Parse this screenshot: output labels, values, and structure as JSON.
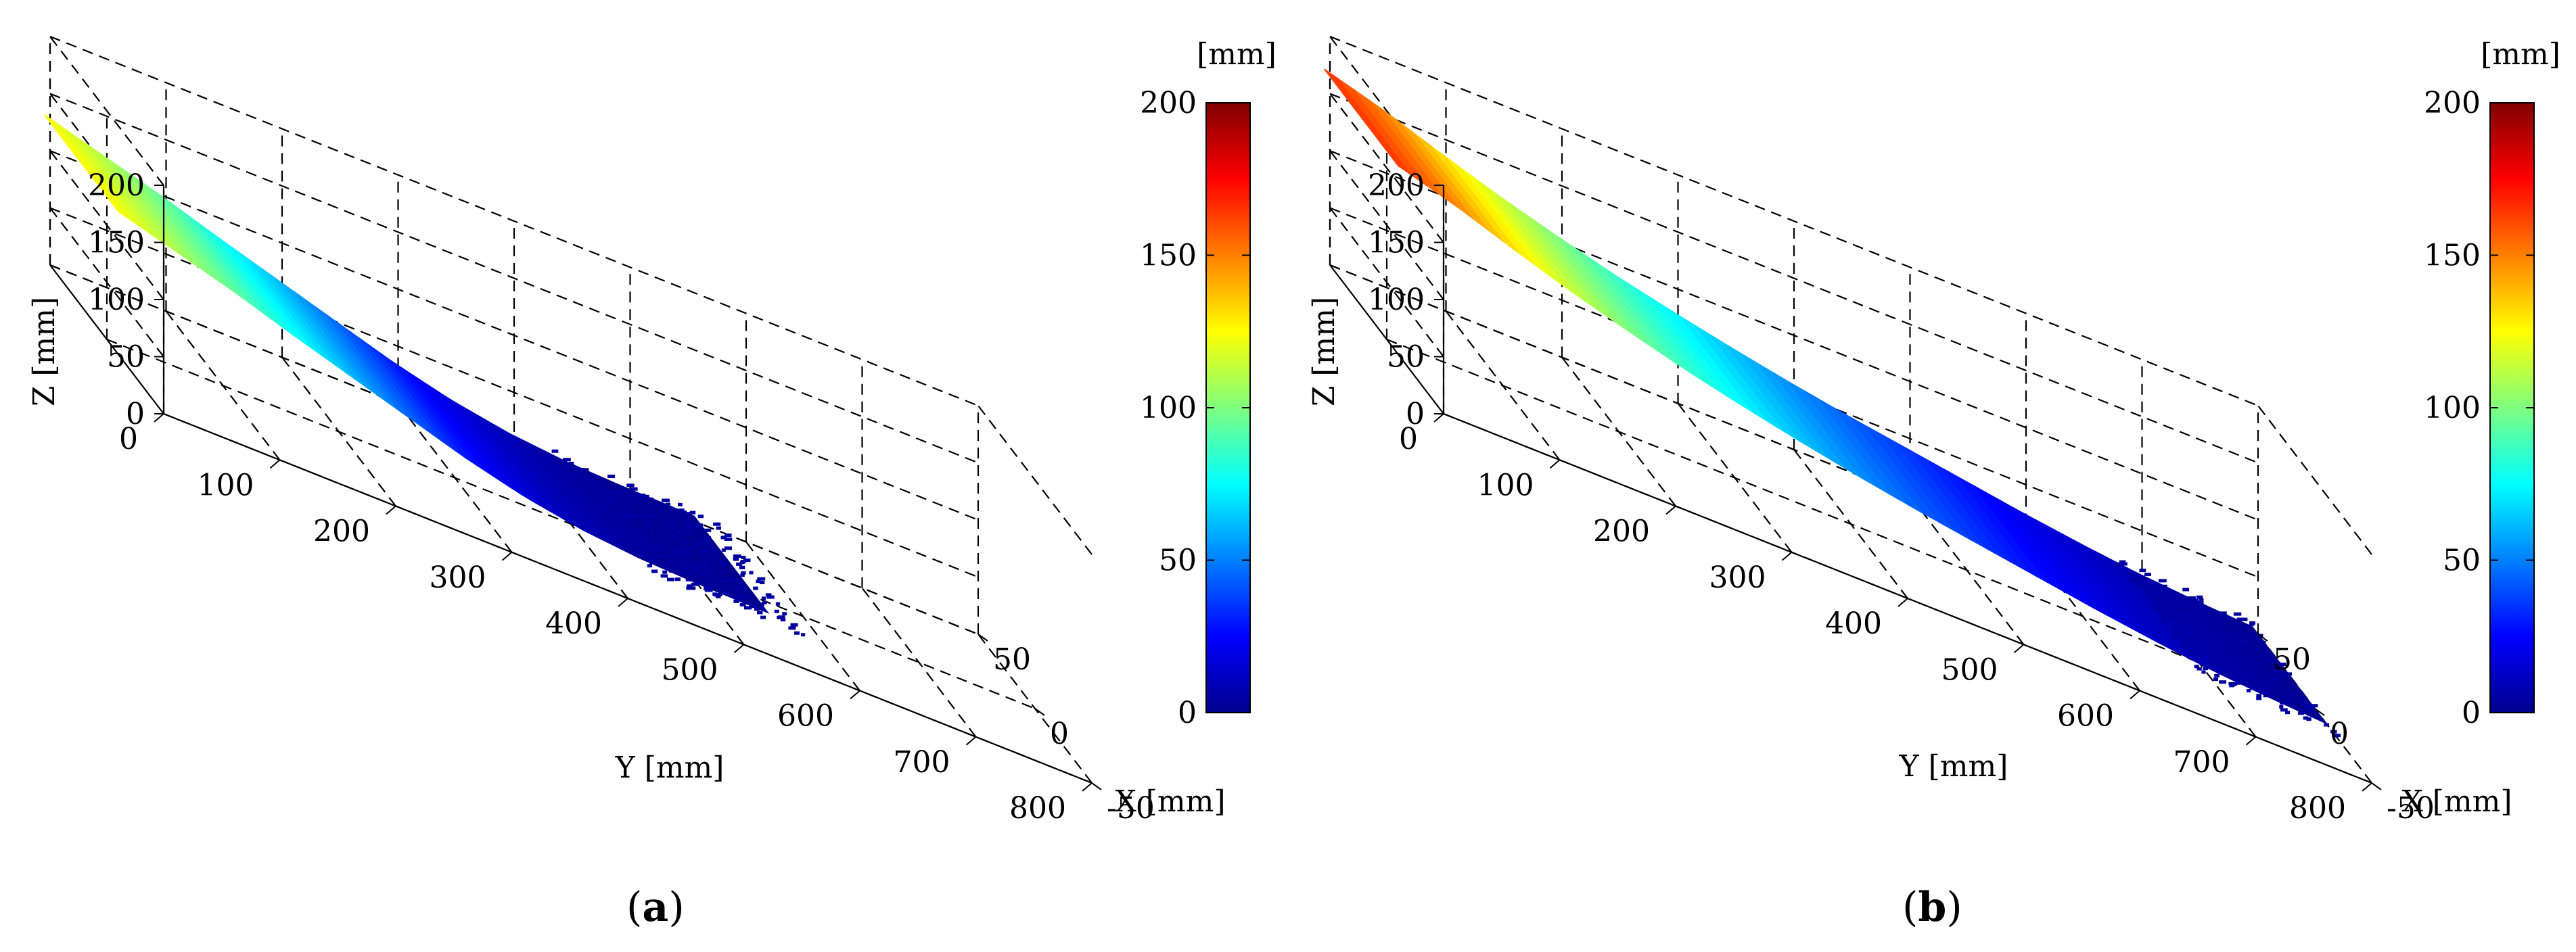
{
  "chart_data": [
    {
      "type": "surface",
      "caption": "(a)",
      "caption_letter": "a",
      "xlabel": "X [mm]",
      "ylabel": "Y [mm]",
      "zlabel": "Z [mm]",
      "x_ticks": [
        "-50",
        "0",
        "50"
      ],
      "y_ticks": [
        "0",
        "100",
        "200",
        "300",
        "400",
        "500",
        "600",
        "700",
        "800"
      ],
      "z_ticks": [
        "0",
        "50",
        "100",
        "150",
        "200"
      ],
      "xlim": [
        -50,
        50
      ],
      "ylim": [
        0,
        800
      ],
      "zlim": [
        0,
        200
      ],
      "grid": true,
      "colormap": "jet",
      "colorbar": {
        "unit": "[mm]",
        "ticks": [
          "0",
          "50",
          "100",
          "150",
          "200"
        ],
        "range": [
          0,
          200
        ]
      },
      "surface_profile": {
        "y_extent": 560,
        "max_z": 125,
        "y": [
          0,
          50,
          100,
          150,
          200,
          250,
          300,
          350,
          400,
          450,
          500,
          560
        ],
        "z": [
          125,
          110,
          95,
          78,
          62,
          46,
          30,
          17,
          8,
          3,
          1,
          0
        ]
      }
    },
    {
      "type": "surface",
      "caption": "(b)",
      "caption_letter": "b",
      "xlabel": "X [mm]",
      "ylabel": "Y [mm]",
      "zlabel": "Z [mm]",
      "x_ticks": [
        "-50",
        "0",
        "50"
      ],
      "y_ticks": [
        "0",
        "100",
        "200",
        "300",
        "400",
        "500",
        "600",
        "700",
        "800"
      ],
      "z_ticks": [
        "0",
        "50",
        "100",
        "150",
        "200"
      ],
      "xlim": [
        -50,
        50
      ],
      "ylim": [
        0,
        800
      ],
      "zlim": [
        0,
        200
      ],
      "grid": true,
      "colormap": "jet",
      "colorbar": {
        "unit": "[mm]",
        "ticks": [
          "0",
          "50",
          "100",
          "150",
          "200"
        ],
        "range": [
          0,
          200
        ]
      },
      "surface_profile": {
        "y_extent": 800,
        "max_z": 165,
        "y": [
          0,
          50,
          100,
          150,
          200,
          250,
          300,
          350,
          400,
          450,
          500,
          550,
          600,
          650,
          700,
          750,
          800
        ],
        "z": [
          165,
          150,
          132,
          115,
          100,
          86,
          74,
          63,
          53,
          44,
          36,
          28,
          20,
          13,
          7,
          3,
          0
        ]
      }
    }
  ]
}
